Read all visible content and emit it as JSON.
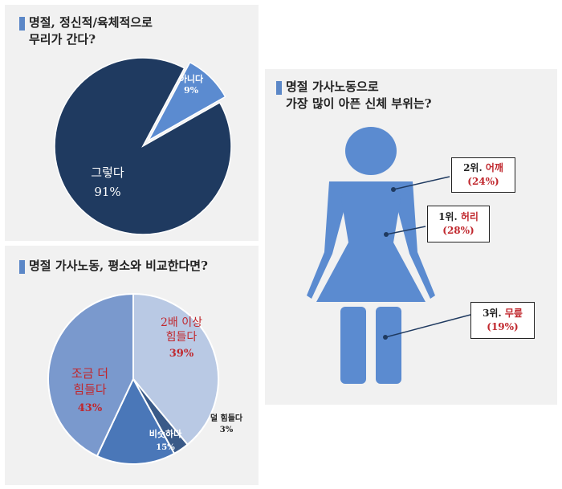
{
  "chart_data": [
    {
      "type": "pie",
      "title_lines": [
        "명절, 정신적/육체적으로",
        "무리가 간다?"
      ],
      "slices": [
        {
          "label": "아니다",
          "value": 9,
          "value_label": "9%",
          "color": "#5b8bd0"
        },
        {
          "label": "그렇다",
          "value": 91,
          "value_label": "91%",
          "color": "#1f3a60"
        }
      ]
    },
    {
      "type": "pie",
      "title_lines": [
        "명절 가사노동, 평소와 비교한다면?"
      ],
      "slices": [
        {
          "label_lines": [
            "2배 이상",
            "힘들다"
          ],
          "value": 39,
          "value_label": "39%",
          "color": "#b9c9e4"
        },
        {
          "label_lines": [
            "덜 힘들다"
          ],
          "value": 3,
          "value_label": "3%",
          "color": "#3a5a88"
        },
        {
          "label_lines": [
            "비슷하다"
          ],
          "value": 15,
          "value_label": "15%",
          "color": "#4a77b8"
        },
        {
          "label_lines": [
            "조금 더",
            "힘들다"
          ],
          "value": 43,
          "value_label": "43%",
          "color": "#7a99cd"
        }
      ]
    },
    {
      "type": "table",
      "title_lines": [
        "명절 가사노동으로",
        "가장 많이 아픈 신체 부위는?"
      ],
      "rows": [
        {
          "rank": "2위.",
          "part": "어깨",
          "value_label": "(24%)"
        },
        {
          "rank": "1위.",
          "part": "허리",
          "value_label": "(28%)"
        },
        {
          "rank": "3위.",
          "part": "무릎",
          "value_label": "(19%)"
        }
      ]
    }
  ],
  "colors": {
    "accent_bar": "#5b87c7",
    "figure": "#5b8bd0",
    "highlight_text": "#c0272d"
  }
}
